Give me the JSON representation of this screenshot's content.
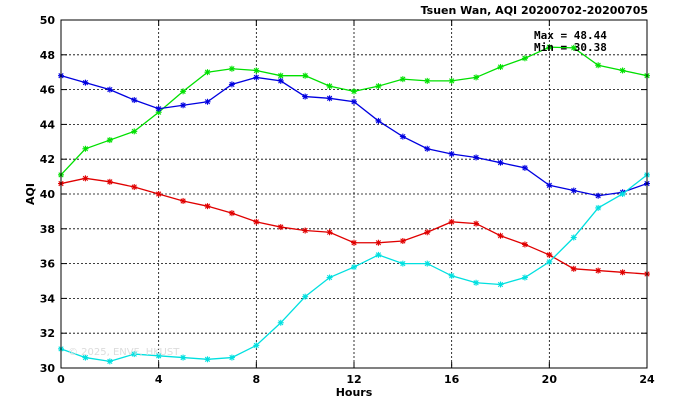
{
  "chart_data": {
    "type": "line",
    "title": "Tsuen Wan, AQI 20200702-20200705",
    "xlabel": "Hours",
    "ylabel": "AQI",
    "xlim": [
      0,
      24
    ],
    "ylim": [
      30,
      50
    ],
    "xticks": [
      0,
      4,
      8,
      12,
      16,
      20,
      24
    ],
    "yticks": [
      30,
      32,
      34,
      36,
      38,
      40,
      42,
      44,
      46,
      48,
      50
    ],
    "grid": true,
    "stats": {
      "max": "Max = 48.44",
      "min": "Min = 30.38"
    },
    "watermark": "© 2025, ENVF, HKUST",
    "x": [
      0,
      1,
      2,
      3,
      4,
      5,
      6,
      7,
      8,
      9,
      10,
      11,
      12,
      13,
      14,
      15,
      16,
      17,
      18,
      19,
      20,
      21,
      22,
      23,
      24
    ],
    "series": [
      {
        "color": "#00e000",
        "values": [
          41.1,
          42.6,
          43.1,
          43.6,
          44.7,
          45.9,
          47.0,
          47.2,
          47.1,
          46.8,
          46.8,
          46.2,
          45.9,
          46.2,
          46.6,
          46.5,
          46.5,
          46.7,
          47.3,
          47.8,
          48.44,
          48.4,
          47.4,
          47.1,
          46.8
        ]
      },
      {
        "color": "#0000e0",
        "values": [
          46.8,
          46.4,
          46.0,
          45.4,
          44.9,
          45.1,
          45.3,
          46.3,
          46.7,
          46.5,
          45.6,
          45.5,
          45.3,
          44.2,
          43.3,
          42.6,
          42.3,
          42.1,
          41.8,
          41.5,
          40.5,
          40.2,
          39.9,
          40.1,
          40.6
        ]
      },
      {
        "color": "#e00000",
        "values": [
          40.6,
          40.9,
          40.7,
          40.4,
          40.0,
          39.6,
          39.3,
          38.9,
          38.4,
          38.1,
          37.9,
          37.8,
          37.2,
          37.2,
          37.3,
          37.8,
          38.4,
          38.3,
          37.6,
          37.1,
          36.5,
          35.7,
          35.6,
          35.5,
          35.4
        ]
      },
      {
        "color": "#00e0e0",
        "values": [
          31.1,
          30.6,
          30.38,
          30.8,
          30.7,
          30.6,
          30.5,
          30.6,
          31.3,
          32.6,
          34.1,
          35.2,
          35.8,
          36.5,
          36.0,
          36.0,
          35.3,
          34.9,
          34.8,
          35.2,
          36.1,
          37.5,
          39.2,
          40.0,
          41.1
        ]
      }
    ]
  }
}
